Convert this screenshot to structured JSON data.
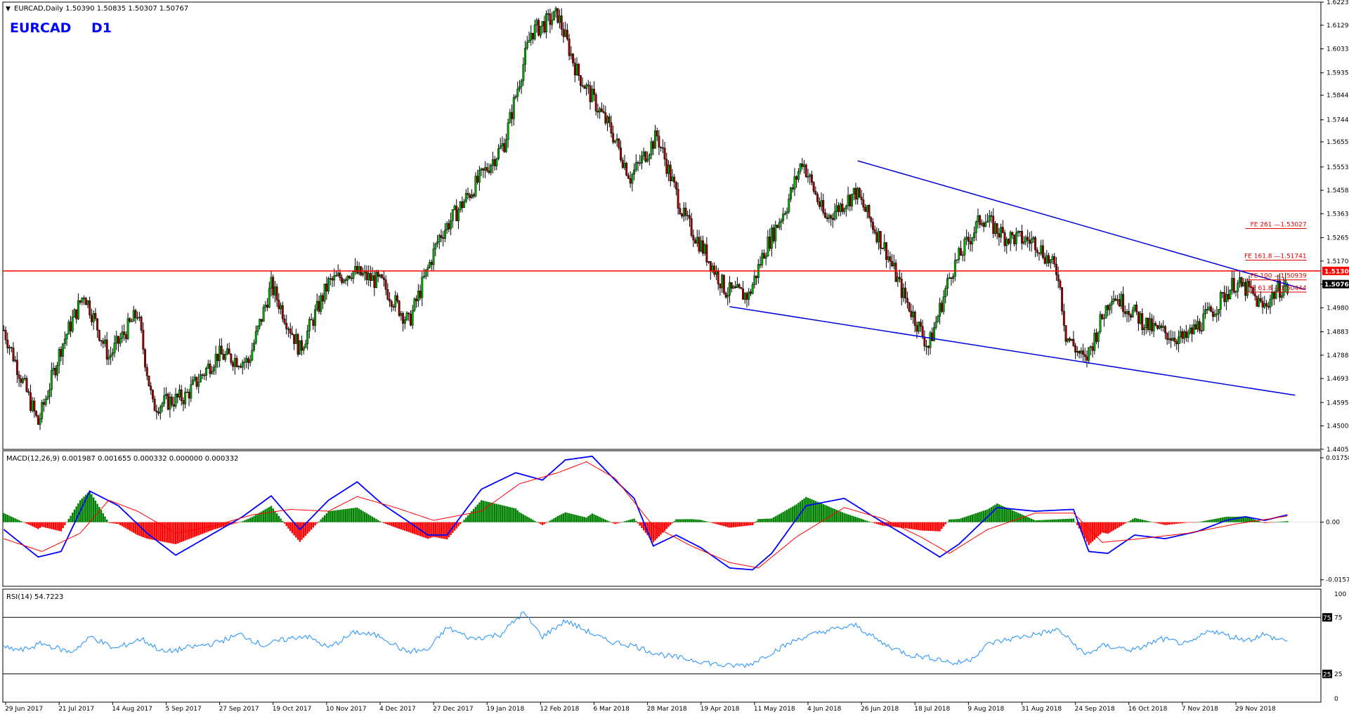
{
  "header": {
    "info_line": "EURCAD,Daily  1.50390 1.50835 1.50307 1.50767",
    "watermark_symbol": "EURCAD",
    "watermark_tf": "D1"
  },
  "chart_data": [
    {
      "type": "candlestick",
      "symbol": "EURCAD",
      "timeframe": "Daily",
      "ohlc_last": {
        "open": 1.5039,
        "high": 1.50835,
        "low": 1.50307,
        "close": 1.50767
      },
      "ylim": [
        1.4405,
        1.6223
      ],
      "y_ticks": [
        "1.62230",
        "1.61290",
        "1.60330",
        "1.59355",
        "1.58445",
        "1.57445",
        "1.56550",
        "1.55530",
        "1.54580",
        "1.53630",
        "1.52655",
        "1.51705",
        "1.50767",
        "1.49805",
        "1.48830",
        "1.47880",
        "1.46930",
        "1.45955",
        "1.45005",
        "1.44055"
      ],
      "x_ticks": [
        "29 Jun 2017",
        "21 Jul 2017",
        "14 Aug 2017",
        "5 Sep 2017",
        "27 Sep 2017",
        "19 Oct 2017",
        "10 Nov 2017",
        "4 Dec 2017",
        "27 Dec 2017",
        "19 Jan 2018",
        "12 Feb 2018",
        "6 Mar 2018",
        "28 Mar 2018",
        "19 Apr 2018",
        "11 May 2018",
        "4 Jun 2018",
        "26 Jun 2018",
        "18 Jul 2018",
        "9 Aug 2018",
        "31 Aug 2018",
        "24 Sep 2018",
        "16 Oct 2018",
        "7 Nov 2018",
        "29 Nov 2018"
      ],
      "price_path": [
        [
          0,
          1.489
        ],
        [
          18,
          1.451
        ],
        [
          30,
          1.482
        ],
        [
          42,
          1.504
        ],
        [
          55,
          1.478
        ],
        [
          70,
          1.496
        ],
        [
          78,
          1.458
        ],
        [
          95,
          1.462
        ],
        [
          112,
          1.479
        ],
        [
          128,
          1.476
        ],
        [
          140,
          1.507
        ],
        [
          155,
          1.481
        ],
        [
          170,
          1.508
        ],
        [
          182,
          1.513
        ],
        [
          198,
          1.508
        ],
        [
          212,
          1.492
        ],
        [
          228,
          1.527
        ],
        [
          246,
          1.547
        ],
        [
          262,
          1.565
        ],
        [
          276,
          1.61
        ],
        [
          290,
          1.617
        ],
        [
          300,
          1.594
        ],
        [
          318,
          1.57
        ],
        [
          328,
          1.551
        ],
        [
          342,
          1.568
        ],
        [
          356,
          1.535
        ],
        [
          366,
          1.522
        ],
        [
          378,
          1.505
        ],
        [
          390,
          1.503
        ],
        [
          398,
          1.521
        ],
        [
          410,
          1.54
        ],
        [
          418,
          1.558
        ],
        [
          430,
          1.534
        ],
        [
          446,
          1.545
        ],
        [
          462,
          1.521
        ],
        [
          470,
          1.505
        ],
        [
          484,
          1.482
        ],
        [
          496,
          1.513
        ],
        [
          512,
          1.535
        ],
        [
          524,
          1.527
        ],
        [
          540,
          1.525
        ],
        [
          552,
          1.512
        ],
        [
          556,
          1.487
        ],
        [
          566,
          1.476
        ],
        [
          580,
          1.504
        ],
        [
          600,
          1.49
        ],
        [
          618,
          1.485
        ],
        [
          634,
          1.498
        ],
        [
          644,
          1.508
        ],
        [
          652,
          1.505
        ],
        [
          659,
          1.498
        ],
        [
          666,
          1.505
        ],
        [
          672,
          1.5077
        ]
      ],
      "price_labels": [
        {
          "text": "1.51304",
          "value": 1.51304,
          "color": "#ff0000"
        },
        {
          "text": "1.50767",
          "value": 1.50767,
          "color": "#000000"
        }
      ],
      "annotations": [
        {
          "text": "FE 261 —1.53027",
          "value": 1.53027
        },
        {
          "text": "FE 161.8 —1.51741",
          "value": 1.51741
        },
        {
          "text": "FE 100 —1.50939",
          "value": 1.50939
        },
        {
          "text": "FE 61.8 —1.50444",
          "value": 1.50444
        }
      ],
      "horizontal_line": {
        "value": 1.51304,
        "color": "#ff0000"
      },
      "trendlines": [
        {
          "from": [
            447,
            1.5578
          ],
          "to": [
            681,
            1.5055
          ],
          "color": "#0000dd"
        },
        {
          "from": [
            380,
            1.4985
          ],
          "to": [
            676,
            1.4625
          ],
          "color": "#0000dd"
        }
      ]
    },
    {
      "type": "macd",
      "label": "MACD(12,26,9) 0.001987 0.001655 0.000332 0.000000 0.000332",
      "ylim": [
        -0.0175,
        0.0195
      ],
      "y_ticks": [
        "0.017587",
        "0.00",
        "-0.015714"
      ],
      "main_path": [
        [
          0,
          -0.002
        ],
        [
          18,
          -0.0095
        ],
        [
          30,
          -0.008
        ],
        [
          45,
          0.0085
        ],
        [
          60,
          0.0045
        ],
        [
          75,
          -0.003
        ],
        [
          90,
          -0.009
        ],
        [
          110,
          -0.003
        ],
        [
          125,
          0.0015
        ],
        [
          140,
          0.0072
        ],
        [
          155,
          -0.002
        ],
        [
          170,
          0.006
        ],
        [
          185,
          0.011
        ],
        [
          198,
          0.005
        ],
        [
          210,
          0.0008
        ],
        [
          222,
          -0.0035
        ],
        [
          232,
          -0.0035
        ],
        [
          250,
          0.009
        ],
        [
          268,
          0.0135
        ],
        [
          282,
          0.0115
        ],
        [
          294,
          0.017
        ],
        [
          308,
          0.018
        ],
        [
          320,
          0.0115
        ],
        [
          330,
          0.0065
        ],
        [
          340,
          -0.0065
        ],
        [
          352,
          -0.0035
        ],
        [
          365,
          -0.007
        ],
        [
          380,
          -0.0125
        ],
        [
          392,
          -0.013
        ],
        [
          402,
          -0.0085
        ],
        [
          420,
          0.0045
        ],
        [
          440,
          0.0065
        ],
        [
          455,
          0.0016
        ],
        [
          470,
          -0.003
        ],
        [
          490,
          -0.0095
        ],
        [
          500,
          -0.006
        ],
        [
          520,
          0.004
        ],
        [
          540,
          0.003
        ],
        [
          560,
          0.0035
        ],
        [
          568,
          -0.008
        ],
        [
          578,
          -0.0085
        ],
        [
          592,
          -0.0035
        ],
        [
          608,
          -0.0045
        ],
        [
          625,
          -0.0025
        ],
        [
          640,
          0.0005
        ],
        [
          650,
          0.0015
        ],
        [
          660,
          0.0005
        ],
        [
          672,
          0.002
        ]
      ],
      "signal_path": [
        [
          0,
          -0.0045
        ],
        [
          20,
          -0.008
        ],
        [
          40,
          -0.003
        ],
        [
          55,
          0.006
        ],
        [
          70,
          0.003
        ],
        [
          90,
          -0.003
        ],
        [
          110,
          -0.001
        ],
        [
          130,
          0.002
        ],
        [
          150,
          0.0035
        ],
        [
          170,
          0.003
        ],
        [
          185,
          0.007
        ],
        [
          205,
          0.004
        ],
        [
          225,
          0.0005
        ],
        [
          250,
          0.003
        ],
        [
          270,
          0.0105
        ],
        [
          290,
          0.0135
        ],
        [
          305,
          0.0165
        ],
        [
          320,
          0.012
        ],
        [
          340,
          -0.001
        ],
        [
          360,
          -0.0065
        ],
        [
          380,
          -0.011
        ],
        [
          395,
          -0.0125
        ],
        [
          415,
          -0.004
        ],
        [
          440,
          0.004
        ],
        [
          460,
          0.001
        ],
        [
          480,
          -0.004
        ],
        [
          495,
          -0.0085
        ],
        [
          515,
          -0.002
        ],
        [
          540,
          0.0025
        ],
        [
          560,
          0.0025
        ],
        [
          575,
          -0.0055
        ],
        [
          595,
          -0.0045
        ],
        [
          620,
          -0.003
        ],
        [
          645,
          -0.0005
        ],
        [
          672,
          0.0017
        ]
      ]
    },
    {
      "type": "rsi",
      "label": "RSI(14) 54.7223",
      "ylim": [
        0,
        100
      ],
      "y_ticks": [
        "100",
        "75",
        "25",
        "0"
      ],
      "levels": [
        75,
        25
      ],
      "path": [
        [
          0,
          48
        ],
        [
          10,
          46
        ],
        [
          20,
          52
        ],
        [
          35,
          44
        ],
        [
          46,
          58
        ],
        [
          58,
          47
        ],
        [
          72,
          56
        ],
        [
          84,
          44
        ],
        [
          96,
          48
        ],
        [
          110,
          52
        ],
        [
          124,
          60
        ],
        [
          136,
          50
        ],
        [
          146,
          55
        ],
        [
          158,
          59
        ],
        [
          170,
          48
        ],
        [
          184,
          62
        ],
        [
          198,
          58
        ],
        [
          210,
          45
        ],
        [
          222,
          46
        ],
        [
          232,
          66
        ],
        [
          245,
          56
        ],
        [
          260,
          60
        ],
        [
          272,
          79
        ],
        [
          282,
          58
        ],
        [
          294,
          72
        ],
        [
          304,
          64
        ],
        [
          316,
          54
        ],
        [
          330,
          50
        ],
        [
          340,
          44
        ],
        [
          350,
          40
        ],
        [
          362,
          37
        ],
        [
          378,
          32
        ],
        [
          390,
          33
        ],
        [
          402,
          44
        ],
        [
          416,
          56
        ],
        [
          430,
          63
        ],
        [
          446,
          68
        ],
        [
          460,
          52
        ],
        [
          474,
          42
        ],
        [
          490,
          38
        ],
        [
          498,
          34
        ],
        [
          506,
          38
        ],
        [
          516,
          52
        ],
        [
          530,
          57
        ],
        [
          540,
          60
        ],
        [
          552,
          64
        ],
        [
          560,
          52
        ],
        [
          566,
          42
        ],
        [
          576,
          50
        ],
        [
          592,
          46
        ],
        [
          606,
          56
        ],
        [
          620,
          51
        ],
        [
          632,
          64
        ],
        [
          642,
          58
        ],
        [
          652,
          55
        ],
        [
          659,
          60
        ],
        [
          666,
          56
        ],
        [
          672,
          55
        ]
      ]
    }
  ]
}
